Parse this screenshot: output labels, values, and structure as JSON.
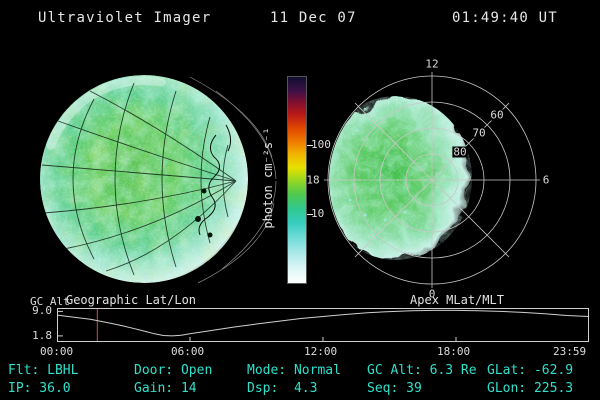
{
  "header": {
    "title": "Ultraviolet Imager",
    "date": "11 Dec 07",
    "time": "01:49:40 UT"
  },
  "status": {
    "row1": [
      "Flt: LBHL",
      "Door: Open",
      "Mode: Normal",
      "GC Alt: 6.3 Re",
      "GLat: -62.9"
    ],
    "row2": [
      "IP: 36.0",
      "Gain: 14",
      "Dsp:  4.3",
      "Seq: 39",
      "GLon: 225.3"
    ]
  },
  "colors": {
    "status_text": "#2fe0cb",
    "time_marker": "#c05050",
    "curve": "#cfcfcf",
    "grid_on_image": "#0b1a10"
  },
  "chart_data": [
    {
      "type": "line",
      "name": "gc-altitude-orbit",
      "ylabel": "GC Alt",
      "yticks": [
        "9.0",
        "1.8"
      ],
      "ytick_values": [
        9.0,
        1.8
      ],
      "xticks": [
        "00:00",
        "06:00",
        "12:00",
        "18:00",
        "23:59"
      ],
      "xtick_values": [
        0,
        6,
        12,
        18,
        23.983
      ],
      "xlim": [
        0,
        24
      ],
      "ylim": [
        0,
        10
      ],
      "x_hours": [
        0,
        0.5,
        1,
        1.5,
        1.82,
        2.5,
        3,
        3.5,
        4,
        4.4,
        4.8,
        5.2,
        5.6,
        6,
        7,
        8,
        9,
        10,
        11,
        12,
        13,
        14,
        15,
        16,
        17,
        18,
        19,
        20,
        21,
        22,
        23,
        23.98
      ],
      "alt_re": [
        7.9,
        7.5,
        7.1,
        6.7,
        6.3,
        5.4,
        4.7,
        3.9,
        3.1,
        2.4,
        1.9,
        1.8,
        2.0,
        2.4,
        3.4,
        4.4,
        5.3,
        6.1,
        6.9,
        7.5,
        8.1,
        8.6,
        8.95,
        9.2,
        9.3,
        9.3,
        9.2,
        9.0,
        8.7,
        8.3,
        7.8,
        7.5
      ],
      "current_time_hours": 1.82
    },
    {
      "type": "heatmap",
      "name": "uv-earth-disk",
      "title": "Geographic Lat/Lon",
      "colorbar_label": "photon cm⁻²s⁻¹",
      "colorbar_ticks": [
        "100",
        "10"
      ],
      "scale": "log"
    },
    {
      "type": "heatmap",
      "name": "auroral-oval-polar",
      "title": "Apex MLat/MLT",
      "mlt_labels": [
        "12",
        "18",
        "6",
        "0"
      ],
      "mlat_rings": [
        "60",
        "70",
        "80"
      ]
    }
  ]
}
